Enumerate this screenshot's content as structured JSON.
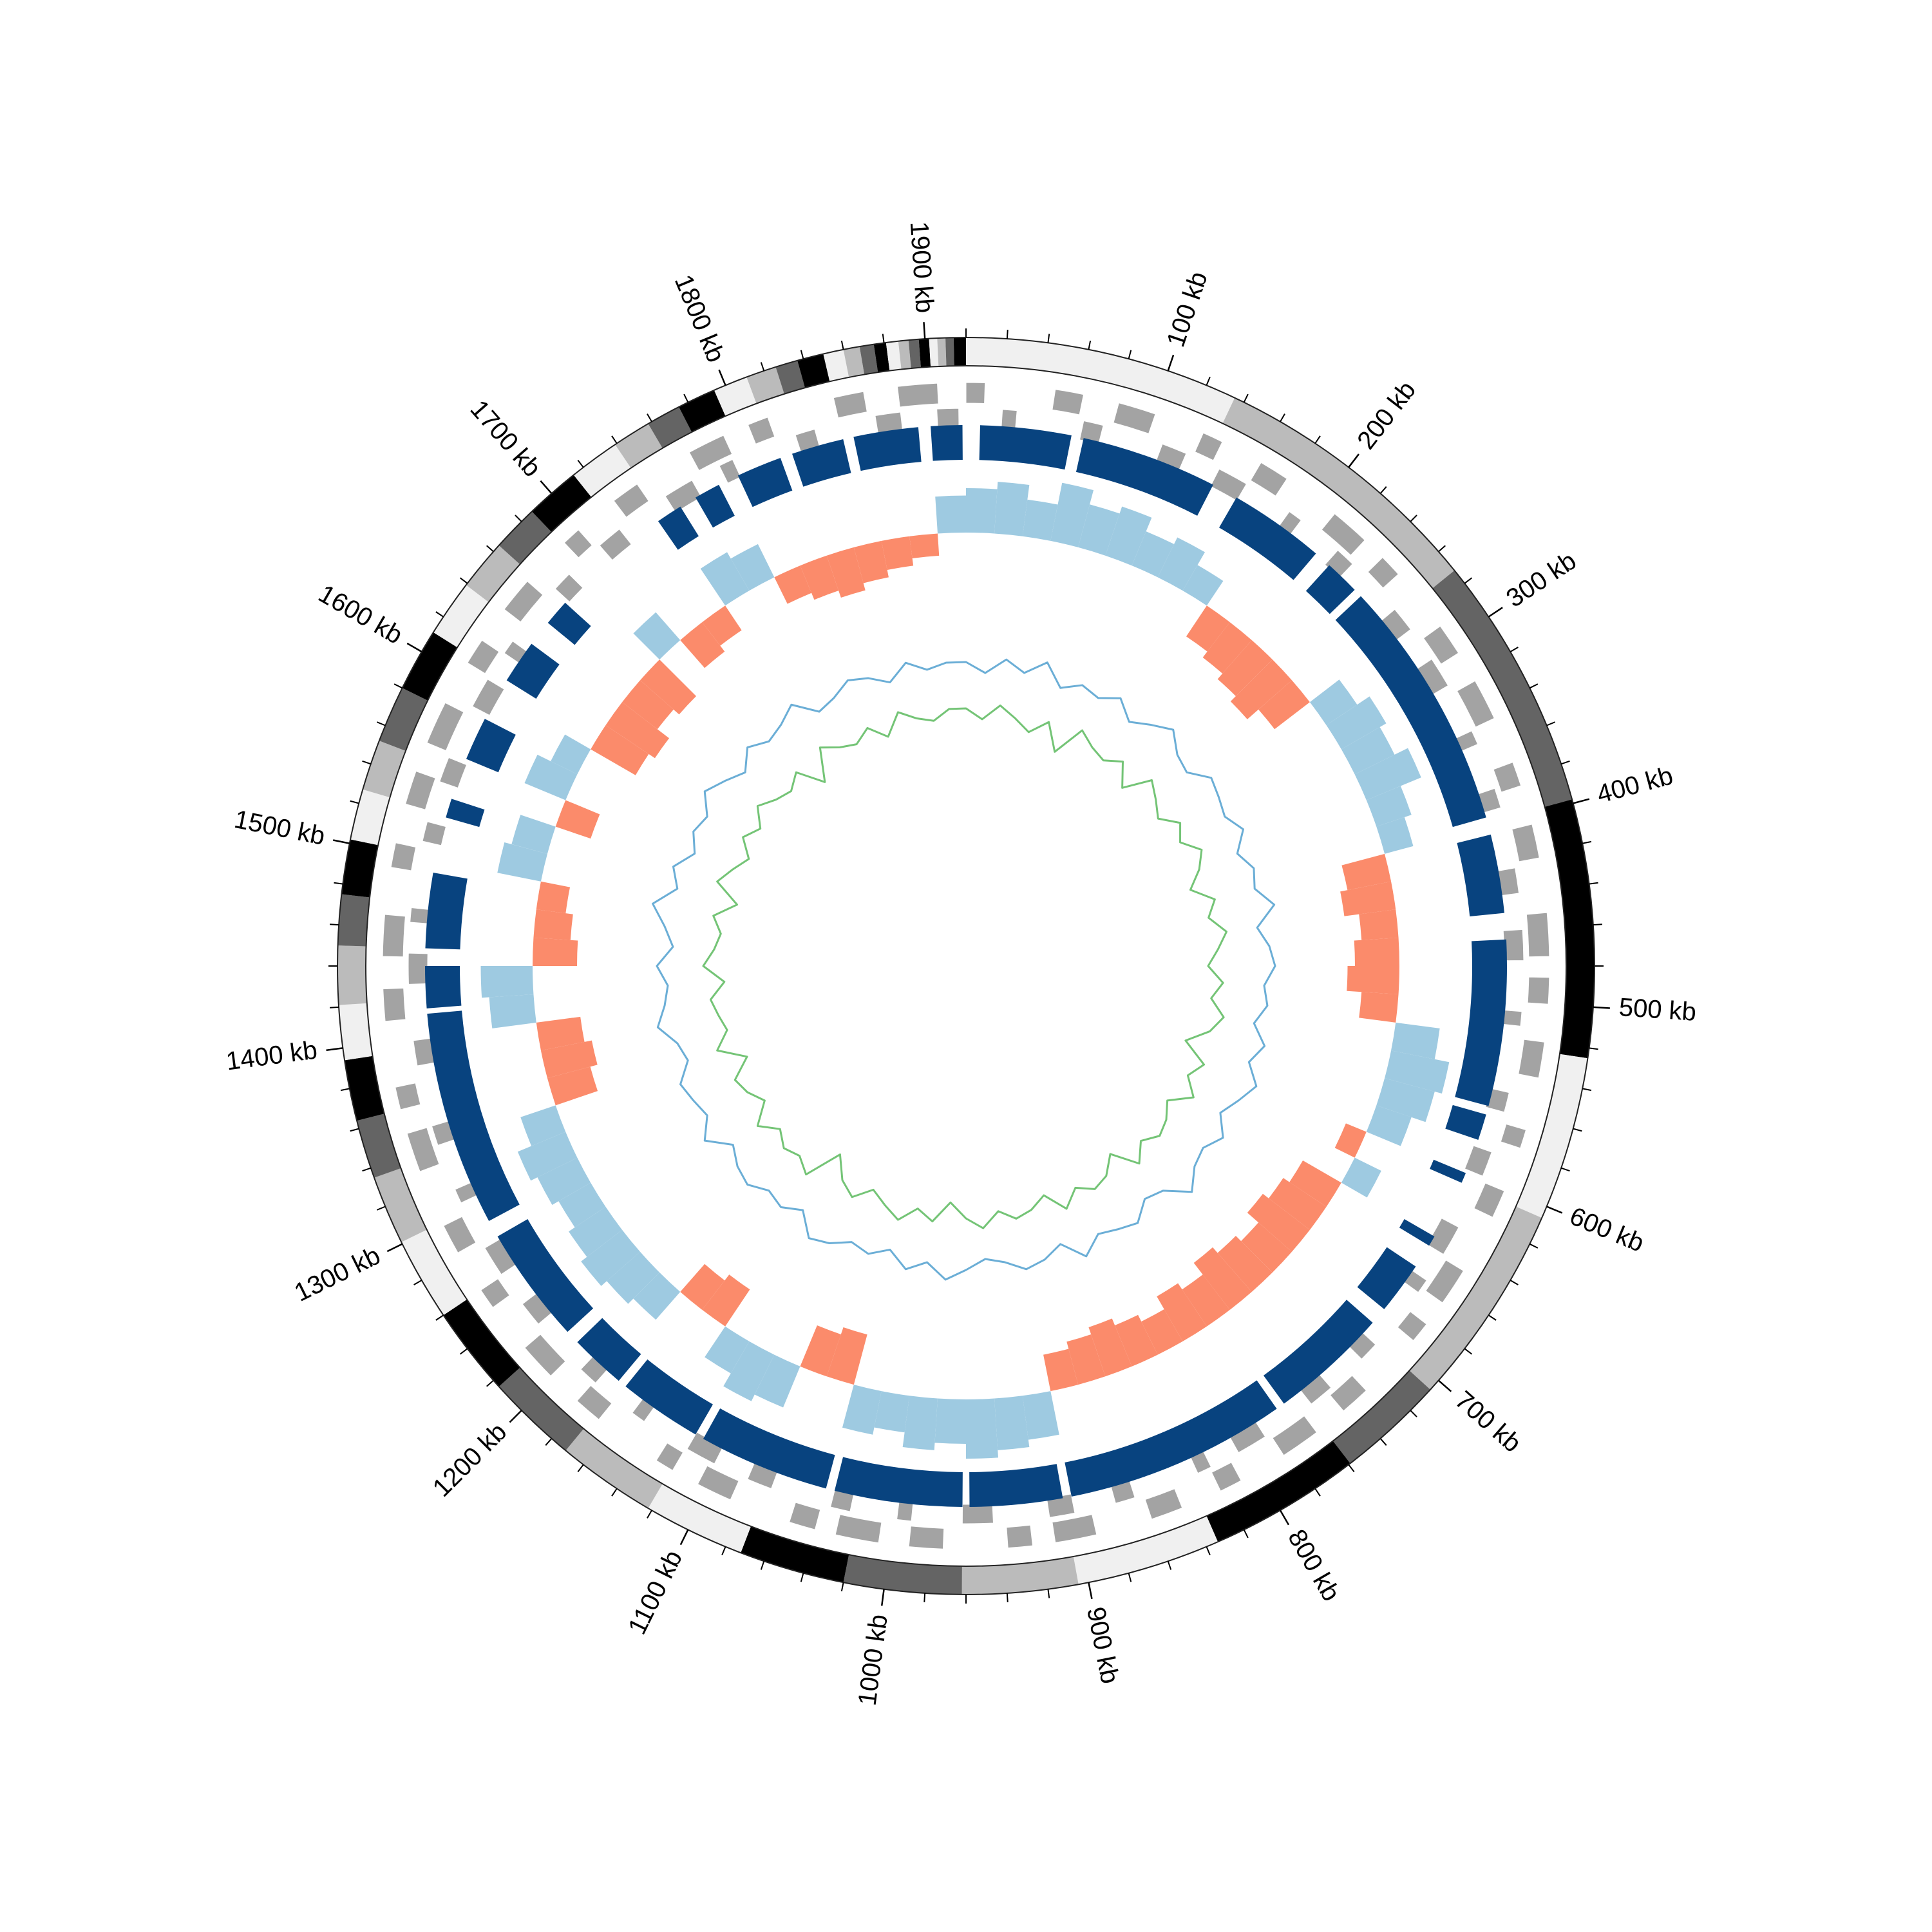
{
  "chart_data": {
    "type": "circular-genome",
    "xlim": [
      0,
      1920
    ],
    "xticks": [
      {
        "value": 100,
        "label": "100 kb"
      },
      {
        "value": 200,
        "label": "200 kb"
      },
      {
        "value": 300,
        "label": "300 kb"
      },
      {
        "value": 400,
        "label": "400 kb"
      },
      {
        "value": 500,
        "label": "500 kb"
      },
      {
        "value": 600,
        "label": "600 kb"
      },
      {
        "value": 700,
        "label": "700 kb"
      },
      {
        "value": 800,
        "label": "800 kb"
      },
      {
        "value": 900,
        "label": "900 kb"
      },
      {
        "value": 1000,
        "label": "1000 kb"
      },
      {
        "value": 1100,
        "label": "1100 kb"
      },
      {
        "value": 1200,
        "label": "1200 kb"
      },
      {
        "value": 1300,
        "label": "1300 kb"
      },
      {
        "value": 1400,
        "label": "1400 kb"
      },
      {
        "value": 1500,
        "label": "1500 kb"
      },
      {
        "value": 1600,
        "label": "1600 kb"
      },
      {
        "value": 1700,
        "label": "1700 kb"
      },
      {
        "value": 1800,
        "label": "1800 kb"
      },
      {
        "value": 1900,
        "label": "1900 kb"
      }
    ],
    "minor_ticks": [
      0,
      20,
      40,
      60,
      80,
      120,
      140,
      160,
      180,
      220,
      240,
      260,
      280,
      320,
      340,
      360,
      380,
      420,
      440,
      460,
      480,
      520,
      540,
      560,
      580,
      620,
      640,
      660,
      680,
      720,
      740,
      760,
      780,
      820,
      840,
      860,
      880,
      920,
      940,
      960,
      980,
      1020,
      1040,
      1060,
      1080,
      1120,
      1140,
      1160,
      1180,
      1220,
      1240,
      1260,
      1280,
      1320,
      1340,
      1360,
      1380,
      1420,
      1440,
      1460,
      1480,
      1520,
      1540,
      1560,
      1580,
      1620,
      1640,
      1660,
      1680,
      1720,
      1740,
      1760,
      1780,
      1820,
      1840,
      1860,
      1880
    ],
    "contigs": {
      "bounds": [
        0,
        135,
        272,
        398,
        525,
        606,
        706,
        759,
        834,
        905,
        962,
        1020,
        1072,
        1122,
        1171,
        1216,
        1260,
        1301,
        1335,
        1364,
        1394,
        1421,
        1450,
        1475,
        1502,
        1527,
        1552,
        1580,
        1611,
        1639,
        1664,
        1687,
        1714,
        1739,
        1758,
        1775,
        1794,
        1811,
        1826,
        1837,
        1850,
        1860,
        1868,
        1875,
        1881,
        1887,
        1892,
        1897,
        1902,
        1906,
        1910,
        1914,
        1920
      ],
      "colors": [
        "#f0f0f0",
        "#bbbbbb",
        "#646464",
        "#000000"
      ]
    },
    "genes": {
      "color": "#a3a3a3",
      "forward": [
        [
          0,
          10
        ],
        [
          47,
          62
        ],
        [
          81,
          101
        ],
        [
          128,
          139
        ],
        [
          162,
          178
        ],
        [
          209,
          230
        ],
        [
          243,
          255
        ],
        [
          290,
          307
        ],
        [
          324,
          346
        ],
        [
          371,
          384
        ],
        [
          405,
          423
        ],
        [
          452,
          475
        ],
        [
          486,
          500
        ],
        [
          520,
          539
        ],
        [
          567,
          577
        ],
        [
          601,
          616
        ],
        [
          648,
          668
        ],
        [
          682,
          693
        ],
        [
          729,
          745
        ],
        [
          763,
          784
        ],
        [
          810,
          822
        ],
        [
          844,
          861
        ],
        [
          891,
          913
        ],
        [
          925,
          938
        ],
        [
          972,
          990
        ],
        [
          1006,
          1029
        ],
        [
          1040,
          1054
        ],
        [
          1087,
          1106
        ],
        [
          1121,
          1131
        ],
        [
          1168,
          1183
        ],
        [
          1202,
          1222
        ],
        [
          1249,
          1260
        ],
        [
          1283,
          1299
        ],
        [
          1330,
          1351
        ],
        [
          1364,
          1376
        ],
        [
          1411,
          1428
        ],
        [
          1445,
          1467
        ],
        [
          1492,
          1505
        ],
        [
          1526,
          1544
        ],
        [
          1560,
          1583
        ],
        [
          1607,
          1621
        ],
        [
          1641,
          1660
        ],
        [
          1688,
          1698
        ],
        [
          1722,
          1737
        ],
        [
          1769,
          1789
        ],
        [
          1803,
          1814
        ],
        [
          1850,
          1866
        ],
        [
          1884,
          1905
        ]
      ],
      "reverse": [
        [
          20,
          28
        ],
        [
          65,
          76
        ],
        [
          110,
          124
        ],
        [
          144,
          161
        ],
        [
          189,
          197
        ],
        [
          223,
          234
        ],
        [
          268,
          282
        ],
        [
          302,
          319
        ],
        [
          347,
          355
        ],
        [
          381,
          392
        ],
        [
          426,
          440
        ],
        [
          460,
          477
        ],
        [
          505,
          513
        ],
        [
          550,
          561
        ],
        [
          584,
          598
        ],
        [
          629,
          646
        ],
        [
          663,
          671
        ],
        [
          708,
          719
        ],
        [
          742,
          756
        ],
        [
          787,
          804
        ],
        [
          821,
          829
        ],
        [
          866,
          877
        ],
        [
          900,
          914
        ],
        [
          945,
          962
        ],
        [
          990,
          998
        ],
        [
          1024,
          1035
        ],
        [
          1069,
          1083
        ],
        [
          1103,
          1120
        ],
        [
          1148,
          1156
        ],
        [
          1182,
          1193
        ],
        [
          1227,
          1241
        ],
        [
          1261,
          1278
        ],
        [
          1306,
          1314
        ],
        [
          1340,
          1351
        ],
        [
          1385,
          1399
        ],
        [
          1430,
          1447
        ],
        [
          1464,
          1472
        ],
        [
          1509,
          1520
        ],
        [
          1543,
          1557
        ],
        [
          1588,
          1605
        ],
        [
          1622,
          1630
        ],
        [
          1667,
          1678
        ],
        [
          1701,
          1715
        ],
        [
          1746,
          1763
        ],
        [
          1780,
          1788
        ],
        [
          1825,
          1836
        ],
        [
          1870,
          1884
        ],
        [
          1904,
          1916
        ]
      ]
    },
    "alignments": {
      "color": "#08437f",
      "blocks": [
        [
          8,
          60
        ],
        [
          67,
          145
        ],
        [
          160,
          215
        ],
        [
          225,
          245
        ],
        [
          250,
          395
        ],
        [
          405,
          450
        ],
        [
          465,
          560
        ],
        [
          565,
          580
        ],
        [
          600,
          606
        ],
        [
          640,
          646
        ],
        [
          660,
          690
        ],
        [
          700,
          768
        ],
        [
          773,
          900
        ],
        [
          905,
          958
        ],
        [
          962,
          1035
        ],
        [
          1040,
          1115
        ],
        [
          1120,
          1168
        ],
        [
          1173,
          1205
        ],
        [
          1213,
          1280
        ],
        [
          1290,
          1413
        ],
        [
          1416,
          1440
        ],
        [
          1450,
          1493
        ],
        [
          1525,
          1536
        ],
        [
          1560,
          1585
        ],
        [
          1610,
          1635
        ],
        [
          1650,
          1665
        ],
        [
          1735,
          1750
        ],
        [
          1760,
          1775
        ],
        [
          1787,
          1813
        ],
        [
          1820,
          1850
        ],
        [
          1856,
          1893
        ],
        [
          1900,
          1918
        ]
      ]
    },
    "x": [
      0,
      20,
      40,
      60,
      80,
      100,
      120,
      140,
      160,
      180,
      200,
      220,
      240,
      260,
      280,
      300,
      320,
      340,
      360,
      380,
      400,
      420,
      440,
      460,
      480,
      500,
      520,
      540,
      560,
      580,
      600,
      620,
      640,
      660,
      680,
      700,
      720,
      740,
      760,
      780,
      800,
      820,
      840,
      860,
      880,
      900,
      920,
      940,
      960,
      980,
      1000,
      1020,
      1040,
      1060,
      1080,
      1100,
      1120,
      1140,
      1160,
      1180,
      1200,
      1220,
      1240,
      1260,
      1280,
      1300,
      1320,
      1340,
      1360,
      1380,
      1400,
      1420,
      1440,
      1460,
      1480,
      1500,
      1520,
      1540,
      1560,
      1580,
      1600,
      1620,
      1640,
      1660,
      1680,
      1700,
      1720,
      1740,
      1760,
      1780,
      1800,
      1820,
      1840,
      1860,
      1880,
      1900
    ],
    "gc_skew": {
      "pos_color": "#9ecae1",
      "neg_color": "#fb8b6b",
      "values": [
        0.6,
        0.7,
        0.5,
        0.8,
        0.6,
        0.7,
        0.5,
        0.6,
        0.4,
        -0.5,
        -0.6,
        -0.7,
        -0.8,
        -0.6,
        0.5,
        0.7,
        0.6,
        0.8,
        0.5,
        0.4,
        -0.6,
        -0.7,
        -0.5,
        -0.6,
        -0.7,
        -0.5,
        0.6,
        0.8,
        0.7,
        0.5,
        -0.3,
        0.4,
        -0.6,
        -0.7,
        -0.8,
        -0.6,
        -0.7,
        -0.8,
        -0.6,
        -0.7,
        -0.5,
        -0.6,
        -0.7,
        -0.6,
        -0.5,
        0.6,
        0.7,
        0.8,
        0.6,
        0.7,
        0.5,
        0.6,
        -0.7,
        -0.6,
        0.6,
        0.7,
        0.5,
        -0.6,
        -0.5,
        0.5,
        0.6,
        0.7,
        0.6,
        0.5,
        0.6,
        0.7,
        0.5,
        -0.6,
        -0.7,
        -0.6,
        0.6,
        0.7,
        -0.6,
        -0.5,
        -0.4,
        0.6,
        0.5,
        -0.5,
        0.6,
        0.4,
        -0.7,
        -0.8,
        -0.6,
        -0.7,
        0.5,
        -0.5,
        -0.4,
        0.6,
        0.5,
        -0.4,
        -0.5,
        -0.6,
        -0.5,
        -0.4,
        -0.3,
        0.5
      ]
    },
    "gc_content": {
      "series": [
        {
          "color": "#6baed6",
          "values": [
            0.5,
            0.3,
            0.6,
            0.4,
            0.7,
            0.3,
            0.5,
            0.4,
            0.6,
            0.3,
            0.5,
            0.7,
            0.4,
            0.3,
            0.6,
            0.5,
            0.4,
            0.6,
            0.3,
            0.5,
            0.4,
            0.7,
            0.3,
            0.5,
            0.6,
            0.4,
            0.5,
            0.3,
            0.6,
            0.4,
            0.7,
            0.5,
            0.3,
            0.6,
            0.4,
            0.5,
            0.8,
            0.4,
            0.3,
            0.6,
            0.5,
            0.4,
            0.7,
            0.3,
            0.5,
            0.6,
            0.4,
            0.3,
            0.5,
            0.7,
            0.4,
            0.6,
            0.3,
            0.5,
            0.4,
            0.6,
            0.7,
            0.3,
            0.5,
            0.4,
            0.6,
            0.5,
            0.3,
            0.7,
            0.4,
            0.5,
            0.6,
            0.3,
            0.4,
            0.7,
            0.5,
            0.4,
            0.6,
            0.3,
            0.5,
            0.8,
            0.4,
            0.6,
            0.3,
            0.5,
            0.4,
            0.7,
            0.5,
            0.3,
            0.6,
            0.4,
            0.5,
            0.7,
            0.3,
            0.4,
            0.6,
            0.5,
            0.3,
            0.6,
            0.4,
            0.5
          ]
        },
        {
          "color": "#74c476",
          "values": [
            -0.4,
            -0.6,
            -0.3,
            -0.5,
            -0.7,
            -0.4,
            -0.9,
            -0.3,
            -0.5,
            -0.6,
            -0.4,
            -0.8,
            -0.3,
            -0.5,
            -0.7,
            -0.4,
            -0.6,
            -0.3,
            -0.5,
            -0.8,
            -0.4,
            -0.6,
            -0.3,
            -0.5,
            -0.7,
            -0.4,
            -0.6,
            -0.3,
            -0.5,
            -0.9,
            -0.4,
            -0.6,
            -0.3,
            -0.7,
            -0.5,
            -0.4,
            -0.6,
            -0.3,
            -0.8,
            -0.5,
            -0.4,
            -0.6,
            -0.3,
            -0.7,
            -0.5,
            -0.4,
            -0.6,
            -0.3,
            -0.5,
            -0.8,
            -0.4,
            -0.6,
            -0.3,
            -0.5,
            -0.7,
            -0.4,
            -0.6,
            -1.0,
            -0.3,
            -0.5,
            -0.4,
            -0.6,
            -0.3,
            -0.7,
            -0.5,
            -0.4,
            -0.8,
            -0.3,
            -0.6,
            -0.5,
            -0.4,
            -0.7,
            -0.3,
            -0.5,
            -0.6,
            -0.4,
            -0.8,
            -0.3,
            -0.5,
            -0.7,
            -0.4,
            -0.6,
            -0.3,
            -0.5,
            -0.6,
            -0.4,
            -0.9,
            -0.3,
            -0.5,
            -0.6,
            -0.4,
            -0.7,
            -0.3,
            -0.5,
            -0.6,
            -0.4
          ]
        }
      ]
    }
  }
}
